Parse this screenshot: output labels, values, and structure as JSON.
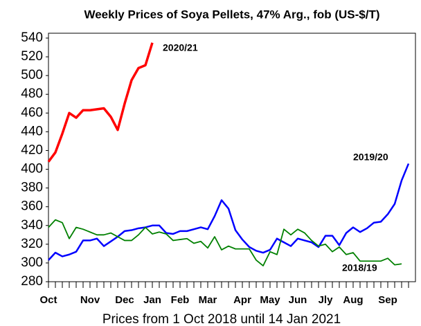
{
  "chart_data": {
    "type": "line",
    "title": "Weekly Prices of Soya Pellets, 47% Arg., fob (US-$/T)",
    "x_label": "Prices from 1 Oct 2018 until 14 Jan 2021",
    "categories": [
      "Oct",
      null,
      null,
      null,
      null,
      null,
      "Nov",
      null,
      null,
      null,
      null,
      "Dec",
      null,
      null,
      null,
      "Jan",
      null,
      null,
      null,
      "Feb",
      null,
      null,
      null,
      "Mar",
      null,
      null,
      null,
      null,
      "Apr",
      null,
      null,
      null,
      "May",
      null,
      null,
      null,
      "Jun",
      null,
      null,
      null,
      "Jly",
      null,
      null,
      null,
      "Aug",
      null,
      null,
      null,
      null,
      "Sep",
      null,
      null,
      null
    ],
    "series": [
      {
        "name": "2020/21",
        "color": "#ff0000",
        "values": [
          408,
          418,
          438,
          460,
          455,
          463,
          463,
          464,
          465,
          456,
          442,
          470,
          495,
          508,
          511,
          535,
          null,
          null,
          null,
          null,
          null,
          null,
          null,
          null,
          null,
          null,
          null,
          null,
          null,
          null,
          null,
          null,
          null,
          null,
          null,
          null,
          null,
          null,
          null,
          null,
          null,
          null,
          null,
          null,
          null,
          null,
          null,
          null,
          null,
          null,
          null,
          null,
          null
        ]
      },
      {
        "name": "2019/20",
        "color": "#0000ff",
        "values": [
          303,
          311,
          307,
          309,
          312,
          324,
          324,
          326,
          318,
          323,
          328,
          334,
          335,
          337,
          338,
          340,
          340,
          332,
          331,
          334,
          334,
          336,
          338,
          336,
          350,
          367,
          358,
          335,
          325,
          317,
          313,
          311,
          314,
          326,
          322,
          318,
          326,
          324,
          322,
          317,
          329,
          329,
          319,
          332,
          338,
          333,
          337,
          343,
          344,
          352,
          363,
          388,
          406
        ]
      },
      {
        "name": "2018/19",
        "color": "#008000",
        "values": [
          338,
          346,
          343,
          326,
          338,
          336,
          333,
          330,
          330,
          332,
          328,
          324,
          324,
          330,
          338,
          331,
          333,
          331,
          324,
          325,
          326,
          321,
          323,
          316,
          328,
          314,
          318,
          315,
          315,
          315,
          303,
          297,
          312,
          309,
          336,
          330,
          336,
          332,
          324,
          318,
          320,
          312,
          317,
          309,
          311,
          302,
          302,
          302,
          302,
          305,
          298,
          299,
          null
        ]
      }
    ],
    "ylim": [
      280,
      540
    ],
    "yticks": [
      280,
      300,
      320,
      340,
      360,
      380,
      400,
      420,
      440,
      460,
      480,
      500,
      520,
      540
    ],
    "grid": false
  }
}
